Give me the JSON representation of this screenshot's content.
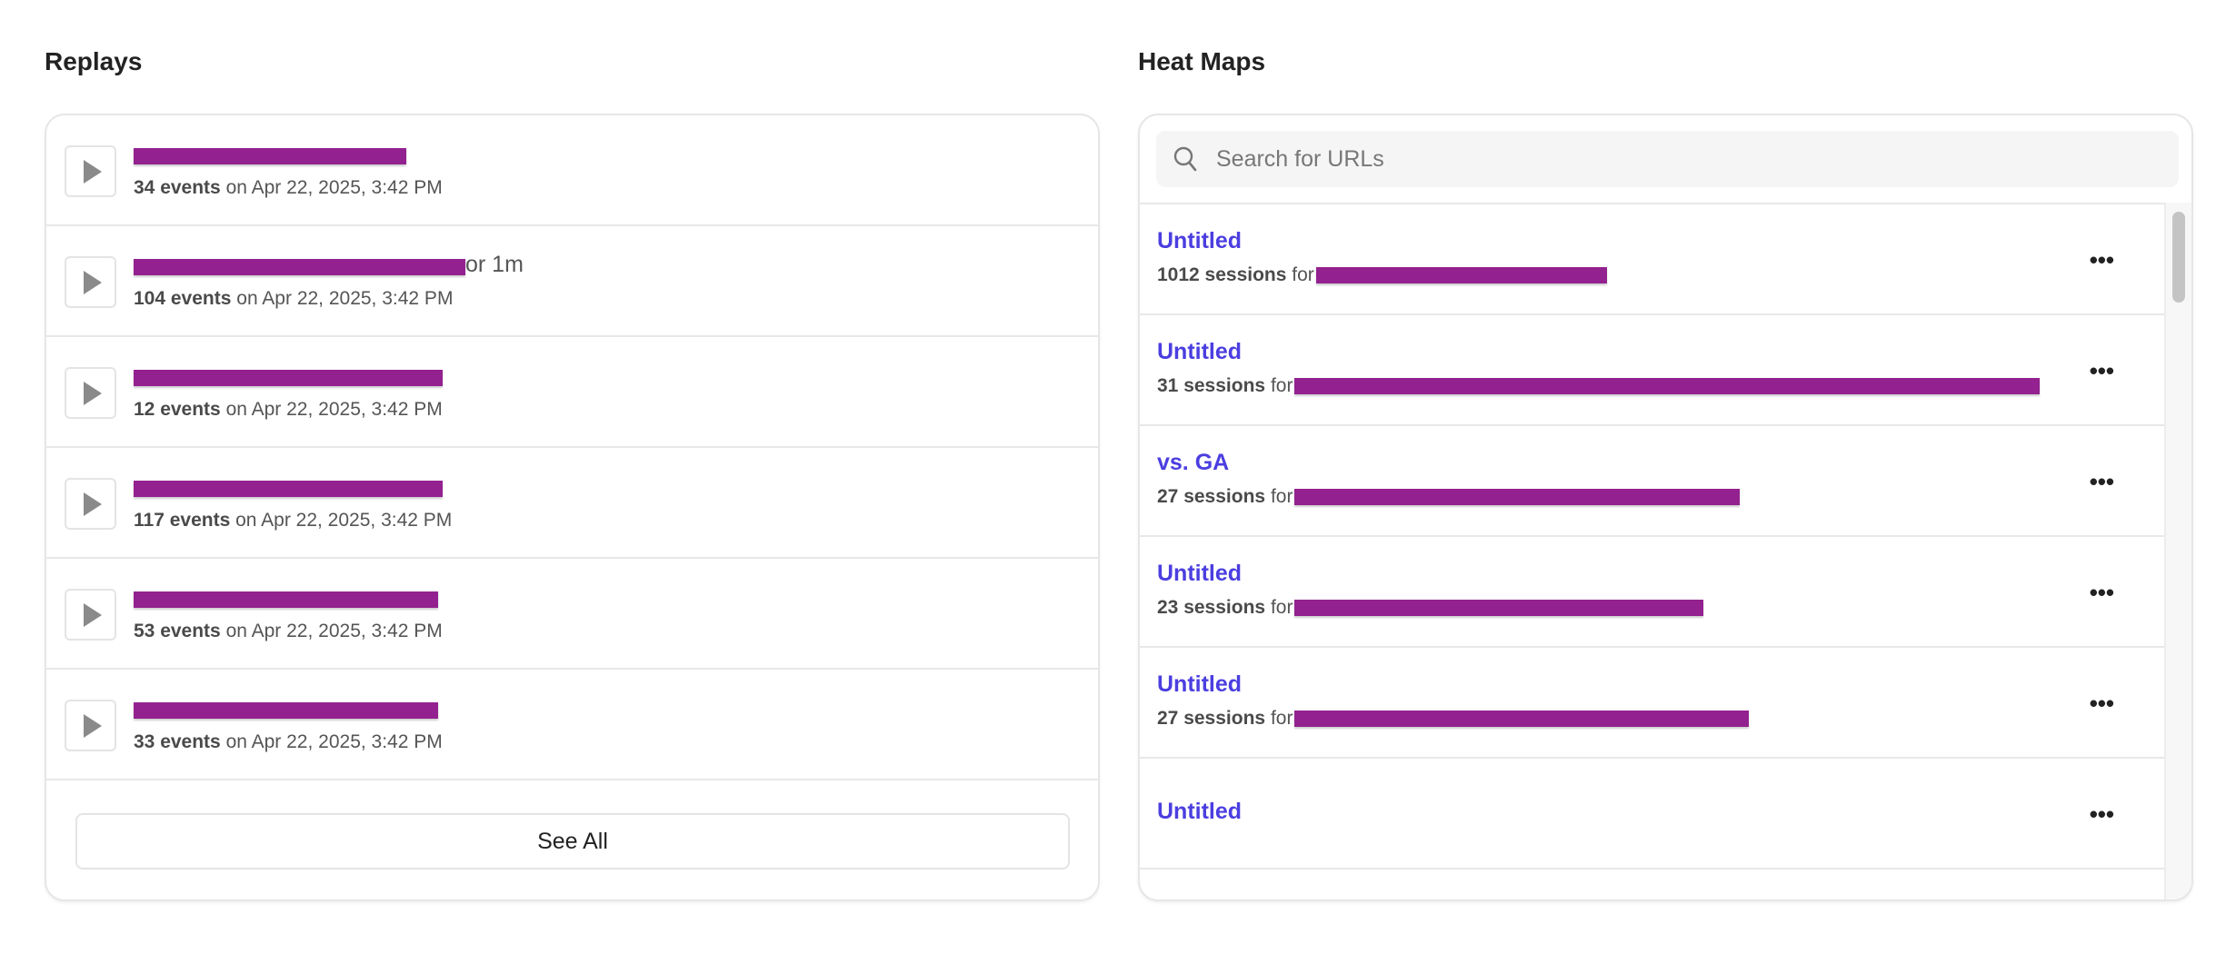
{
  "replays": {
    "title": "Replays",
    "items": [
      {
        "events": "34 events",
        "date": "on Apr 22, 2025, 3:42 PM",
        "visible_tail": ""
      },
      {
        "events": "104 events",
        "date": "on Apr 22, 2025, 3:42 PM",
        "visible_tail": "or 1m"
      },
      {
        "events": "12 events",
        "date": "on Apr 22, 2025, 3:42 PM",
        "visible_tail": ""
      },
      {
        "events": "117 events",
        "date": "on Apr 22, 2025, 3:42 PM",
        "visible_tail": ""
      },
      {
        "events": "53 events",
        "date": "on Apr 22, 2025, 3:42 PM",
        "visible_tail": ""
      },
      {
        "events": "33 events",
        "date": "on Apr 22, 2025, 3:42 PM",
        "visible_tail": ""
      }
    ],
    "see_all_label": "See All",
    "icon": "play-icon"
  },
  "heatmaps": {
    "title": "Heat Maps",
    "search": {
      "placeholder": "Search for URLs",
      "value": "",
      "icon": "search-icon"
    },
    "items": [
      {
        "title": "Untitled",
        "sessions": "1012 sessions",
        "for": "for"
      },
      {
        "title": "Untitled",
        "sessions": "31 sessions",
        "for": "for"
      },
      {
        "title": "vs. GA",
        "sessions": "27 sessions",
        "for": "for"
      },
      {
        "title": "Untitled",
        "sessions": "23 sessions",
        "for": "for"
      },
      {
        "title": "Untitled",
        "sessions": "27 sessions",
        "for": "for"
      },
      {
        "title": "Untitled",
        "sessions": "",
        "for": ""
      }
    ],
    "more_icon": "more-horizontal-icon"
  },
  "colors": {
    "accent": "#4b3ee0",
    "redaction": "#93218f"
  }
}
